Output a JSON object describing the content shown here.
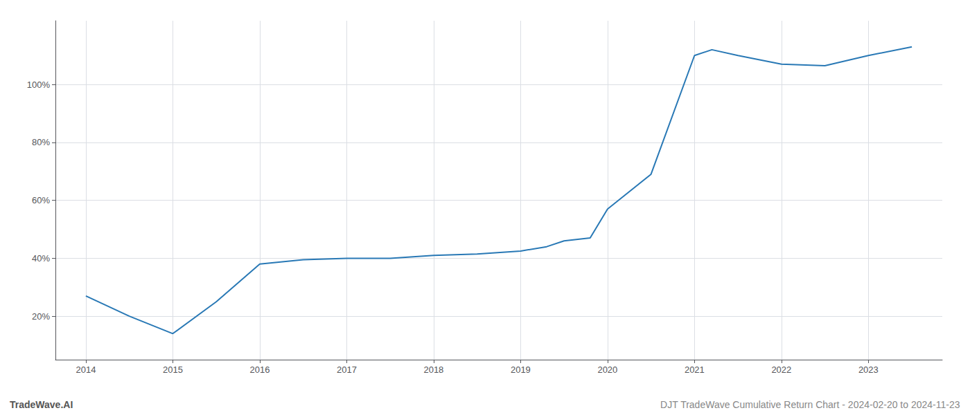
{
  "chart_data": {
    "type": "line",
    "x": [
      2014.0,
      2014.5,
      2015.0,
      2015.5,
      2016.0,
      2016.5,
      2017.0,
      2017.5,
      2018.0,
      2018.5,
      2019.0,
      2019.3,
      2019.5,
      2019.8,
      2020.0,
      2020.5,
      2021.0,
      2021.2,
      2021.5,
      2022.0,
      2022.5,
      2023.0,
      2023.5
    ],
    "values": [
      0.27,
      0.2,
      0.14,
      0.25,
      0.38,
      0.395,
      0.4,
      0.4,
      0.41,
      0.415,
      0.425,
      0.44,
      0.46,
      0.47,
      0.57,
      0.69,
      1.1,
      1.12,
      1.1,
      1.07,
      1.065,
      1.1,
      1.13
    ],
    "color": "#2878b5",
    "xlim": [
      2013.65,
      2023.85
    ],
    "ylim": [
      0.05,
      1.22
    ],
    "xticks": [
      2014,
      2015,
      2016,
      2017,
      2018,
      2019,
      2020,
      2021,
      2022,
      2023
    ],
    "yticks": [
      {
        "value": 0.2,
        "label": "20%"
      },
      {
        "value": 0.4,
        "label": "40%"
      },
      {
        "value": 0.6,
        "label": "60%"
      },
      {
        "value": 0.8,
        "label": "80%"
      },
      {
        "value": 1.0,
        "label": "100%"
      }
    ],
    "grid": true,
    "annotations": [
      "TradeWave.AI",
      "DJT TradeWave Cumulative Return Chart - 2024-02-20 to 2024-11-23"
    ]
  }
}
